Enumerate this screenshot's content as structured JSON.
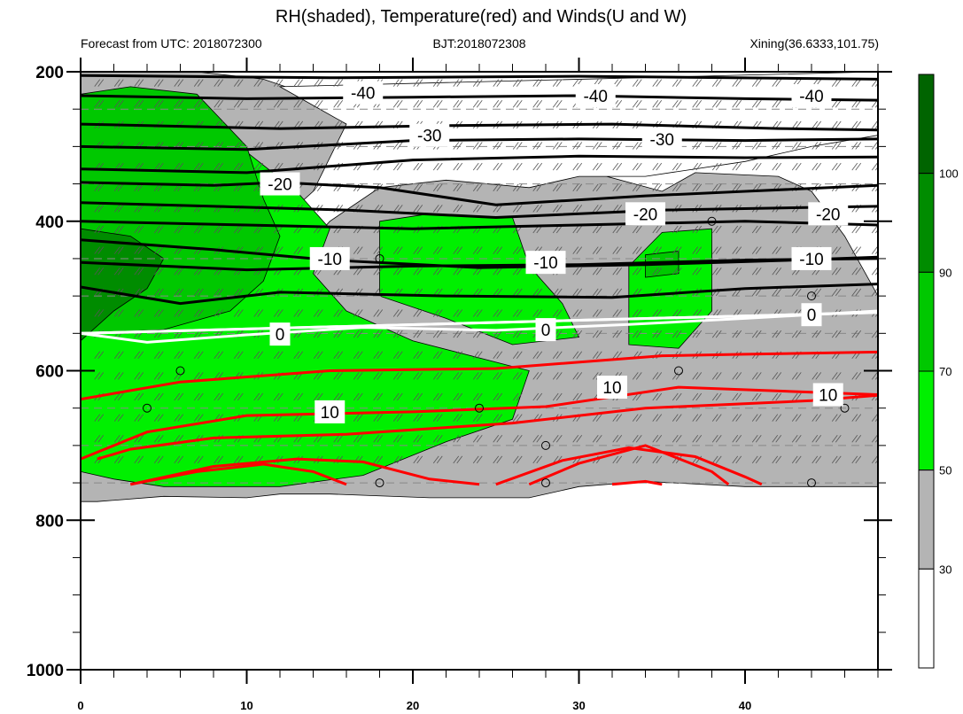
{
  "chart_data": {
    "type": "contour",
    "title": "RH(shaded), Temperature(red) and Winds(U and W)",
    "subtitle_left": "Forecast from UTC: 2018072300",
    "subtitle_center": "BJT:2018072308",
    "subtitle_right": "Xining(36.6333,101.75)",
    "xlabel": "",
    "ylabel": "",
    "xlim": [
      0,
      48
    ],
    "ylim": [
      1000,
      200
    ],
    "x_ticks": [
      "0",
      "10",
      "20",
      "30",
      "40"
    ],
    "y_ticks": [
      "200",
      "400",
      "600",
      "800",
      "1000"
    ],
    "colorbar": {
      "levels": [
        "30",
        "50",
        "70",
        "90",
        "100"
      ],
      "colors": [
        "#ffffff",
        "#b4b4b4",
        "#00f000",
        "#00c800",
        "#008c00",
        "#006400"
      ]
    },
    "rh_shading": [
      {
        "color": "#b4b4b4",
        "points": [
          [
            0,
            200
          ],
          [
            7,
            200
          ],
          [
            11,
            210
          ],
          [
            15,
            240
          ],
          [
            17,
            285
          ],
          [
            22,
            300
          ],
          [
            30,
            330
          ],
          [
            35,
            360
          ],
          [
            37,
            335
          ],
          [
            42,
            340
          ],
          [
            44,
            360
          ],
          [
            46,
            420
          ],
          [
            48,
            500
          ],
          [
            48,
            755
          ],
          [
            40,
            755
          ],
          [
            34,
            748
          ],
          [
            30,
            755
          ],
          [
            27,
            770
          ],
          [
            21,
            770
          ],
          [
            15,
            765
          ],
          [
            12,
            765
          ],
          [
            10,
            770
          ],
          [
            5,
            768
          ],
          [
            1,
            775
          ],
          [
            0,
            775
          ]
        ]
      },
      {
        "color": "#ffffff",
        "points": [
          [
            12,
            220
          ],
          [
            16,
            270
          ],
          [
            14,
            360
          ],
          [
            11,
            420
          ],
          [
            12,
            480
          ],
          [
            13,
            450
          ],
          [
            15,
            400
          ],
          [
            18,
            355
          ],
          [
            22,
            345
          ],
          [
            27,
            355
          ],
          [
            30,
            340
          ],
          [
            34,
            340
          ],
          [
            40,
            320
          ],
          [
            44,
            300
          ],
          [
            48,
            285
          ],
          [
            48,
            200
          ]
        ]
      },
      {
        "color": "#00f000",
        "points": [
          [
            0,
            230
          ],
          [
            6,
            240
          ],
          [
            9,
            290
          ],
          [
            13,
            360
          ],
          [
            15,
            410
          ],
          [
            14,
            470
          ],
          [
            16,
            520
          ],
          [
            20,
            560
          ],
          [
            27,
            600
          ],
          [
            26,
            665
          ],
          [
            22,
            695
          ],
          [
            17,
            740
          ],
          [
            12,
            755
          ],
          [
            5,
            755
          ],
          [
            2,
            745
          ],
          [
            0,
            735
          ]
        ]
      },
      {
        "color": "#00f000",
        "points": [
          [
            18,
            400
          ],
          [
            21,
            390
          ],
          [
            26,
            395
          ],
          [
            27,
            460
          ],
          [
            29,
            510
          ],
          [
            30,
            555
          ],
          [
            26,
            565
          ],
          [
            22,
            530
          ],
          [
            18,
            500
          ]
        ]
      },
      {
        "color": "#00f000",
        "points": [
          [
            33,
            460
          ],
          [
            35,
            415
          ],
          [
            38,
            410
          ],
          [
            38,
            520
          ],
          [
            36,
            570
          ],
          [
            33,
            565
          ]
        ]
      },
      {
        "color": "#00c800",
        "points": [
          [
            0,
            230
          ],
          [
            3,
            220
          ],
          [
            7,
            230
          ],
          [
            10,
            300
          ],
          [
            11,
            370
          ],
          [
            12,
            420
          ],
          [
            11,
            480
          ],
          [
            9,
            520
          ],
          [
            5,
            545
          ],
          [
            0,
            550
          ]
        ]
      },
      {
        "color": "#00c800",
        "points": [
          [
            34,
            445
          ],
          [
            36,
            440
          ],
          [
            36,
            470
          ],
          [
            34,
            475
          ]
        ]
      },
      {
        "color": "#008c00",
        "points": [
          [
            0,
            410
          ],
          [
            3,
            420
          ],
          [
            5,
            450
          ],
          [
            4,
            490
          ],
          [
            2,
            520
          ],
          [
            0,
            560
          ]
        ]
      }
    ],
    "temperature_contours": [
      {
        "level": "-40",
        "color": "#000000",
        "points": [
          [
            0,
            232
          ],
          [
            10,
            236
          ],
          [
            20,
            234
          ],
          [
            30,
            232
          ],
          [
            40,
            236
          ],
          [
            48,
            238
          ]
        ],
        "label_at": [
          17,
          228
        ]
      },
      {
        "level": "-40",
        "color": "#000000",
        "points": [
          [
            0,
            270
          ],
          [
            12,
            276
          ],
          [
            22,
            272
          ],
          [
            32,
            270
          ],
          [
            42,
            276
          ],
          [
            48,
            278
          ]
        ],
        "label_at": [
          31,
          232
        ]
      },
      {
        "level": "-40",
        "color": "#000000",
        "points": [
          [
            0,
            205
          ],
          [
            15,
            208
          ],
          [
            30,
            206
          ],
          [
            48,
            210
          ]
        ],
        "label_at": [
          44,
          232
        ]
      },
      {
        "level": "-30",
        "color": "#000000",
        "points": [
          [
            0,
            300
          ],
          [
            10,
            304
          ],
          [
            20,
            292
          ],
          [
            30,
            290
          ],
          [
            40,
            292
          ],
          [
            48,
            290
          ]
        ],
        "label_at": [
          21,
          285
        ]
      },
      {
        "level": "-30",
        "color": "#000000",
        "points": [
          [
            0,
            330
          ],
          [
            10,
            335
          ],
          [
            20,
            318
          ],
          [
            30,
            313
          ],
          [
            40,
            315
          ],
          [
            48,
            314
          ]
        ],
        "label_at": [
          35,
          290
        ]
      },
      {
        "level": "-20",
        "color": "#000000",
        "points": [
          [
            0,
            348
          ],
          [
            8,
            352
          ],
          [
            12,
            348
          ],
          [
            18,
            355
          ],
          [
            25,
            378
          ],
          [
            34,
            366
          ],
          [
            40,
            360
          ],
          [
            48,
            352
          ]
        ],
        "label_at": [
          12,
          350
        ]
      },
      {
        "level": "-20",
        "color": "#000000",
        "points": [
          [
            0,
            375
          ],
          [
            8,
            380
          ],
          [
            16,
            385
          ],
          [
            25,
            395
          ],
          [
            35,
            385
          ],
          [
            48,
            380
          ]
        ],
        "label_at": [
          34,
          390
        ]
      },
      {
        "level": "-20",
        "color": "#000000",
        "points": [
          [
            0,
            400
          ],
          [
            10,
            405
          ],
          [
            20,
            410
          ],
          [
            30,
            405
          ],
          [
            40,
            400
          ],
          [
            48,
            405
          ]
        ],
        "label_at": [
          45,
          390
        ]
      },
      {
        "level": "-10",
        "color": "#000000",
        "points": [
          [
            0,
            425
          ],
          [
            8,
            438
          ],
          [
            15,
            452
          ],
          [
            24,
            462
          ],
          [
            34,
            458
          ],
          [
            43,
            452
          ],
          [
            48,
            448
          ]
        ],
        "label_at": [
          15,
          450
        ]
      },
      {
        "level": "-10",
        "color": "#000000",
        "points": [
          [
            0,
            488
          ],
          [
            6,
            510
          ],
          [
            12,
            495
          ],
          [
            22,
            500
          ],
          [
            32,
            502
          ],
          [
            40,
            490
          ],
          [
            48,
            484
          ]
        ],
        "label_at": [
          28,
          455
        ]
      },
      {
        "level": "-10",
        "color": "#000000",
        "points": [
          [
            0,
            455
          ],
          [
            10,
            465
          ],
          [
            20,
            460
          ],
          [
            30,
            458
          ],
          [
            40,
            452
          ],
          [
            48,
            450
          ]
        ],
        "label_at": [
          44,
          450
        ]
      },
      {
        "level": "0",
        "color": "#ffffff",
        "points": [
          [
            0,
            550
          ],
          [
            4,
            562
          ],
          [
            10,
            552
          ],
          [
            17,
            542
          ],
          [
            25,
            546
          ],
          [
            33,
            538
          ],
          [
            40,
            530
          ],
          [
            48,
            520
          ]
        ],
        "label_at": [
          12,
          551
        ]
      },
      {
        "level": "0",
        "color": "#ffffff",
        "points": [
          [
            0,
            550
          ],
          [
            48,
            522
          ]
        ],
        "label_at": [
          28,
          545
        ]
      },
      {
        "level": "0",
        "color": "#ffffff",
        "points": [
          [
            0,
            550
          ],
          [
            48,
            522
          ]
        ],
        "label_at": [
          44,
          525
        ]
      },
      {
        "level": "10",
        "color": "#ff0000",
        "points": [
          [
            0,
            638
          ],
          [
            6,
            615
          ],
          [
            15,
            600
          ],
          [
            25,
            597
          ],
          [
            35,
            580
          ],
          [
            40,
            578
          ],
          [
            48,
            575
          ]
        ],
        "label_at": [
          32,
          622
        ]
      },
      {
        "level": "10",
        "color": "#ff0000",
        "points": [
          [
            0,
            718
          ],
          [
            4,
            682
          ],
          [
            10,
            660
          ],
          [
            20,
            655
          ],
          [
            28,
            648
          ],
          [
            36,
            622
          ],
          [
            48,
            632
          ]
        ],
        "label_at": [
          15,
          655
        ]
      },
      {
        "level": "10",
        "color": "#ff0000",
        "points": [
          [
            1,
            718
          ],
          [
            3,
            705
          ],
          [
            8,
            690
          ],
          [
            16,
            685
          ],
          [
            26,
            670
          ],
          [
            34,
            650
          ],
          [
            44,
            640
          ],
          [
            48,
            633
          ]
        ],
        "label_at": [
          45,
          632
        ]
      },
      {
        "level": "10",
        "color": "#ff0000",
        "points": [
          [
            3,
            752
          ],
          [
            8,
            728
          ],
          [
            13,
            718
          ],
          [
            17,
            722
          ],
          [
            21,
            745
          ],
          [
            24,
            752
          ]
        ],
        "label_at": null
      },
      {
        "level": "10",
        "color": "#ff0000",
        "points": [
          [
            25,
            752
          ],
          [
            29,
            720
          ],
          [
            33,
            703
          ],
          [
            37,
            715
          ],
          [
            40,
            742
          ],
          [
            41,
            752
          ]
        ],
        "label_at": null
      },
      {
        "level": "10",
        "color": "#ff0000",
        "points": [
          [
            3,
            752
          ],
          [
            7,
            735
          ],
          [
            11,
            725
          ],
          [
            14,
            735
          ],
          [
            16,
            752
          ]
        ],
        "label_at": null
      },
      {
        "level": "10",
        "color": "#ff0000",
        "points": [
          [
            27,
            752
          ],
          [
            30,
            724
          ],
          [
            34,
            700
          ],
          [
            38,
            735
          ],
          [
            39,
            752
          ]
        ],
        "label_at": null
      },
      {
        "level": "10",
        "color": "#ff0000",
        "points": [
          [
            32,
            752
          ],
          [
            34,
            748
          ],
          [
            35,
            752
          ]
        ],
        "label_at": null
      }
    ],
    "grid": "dashed"
  }
}
